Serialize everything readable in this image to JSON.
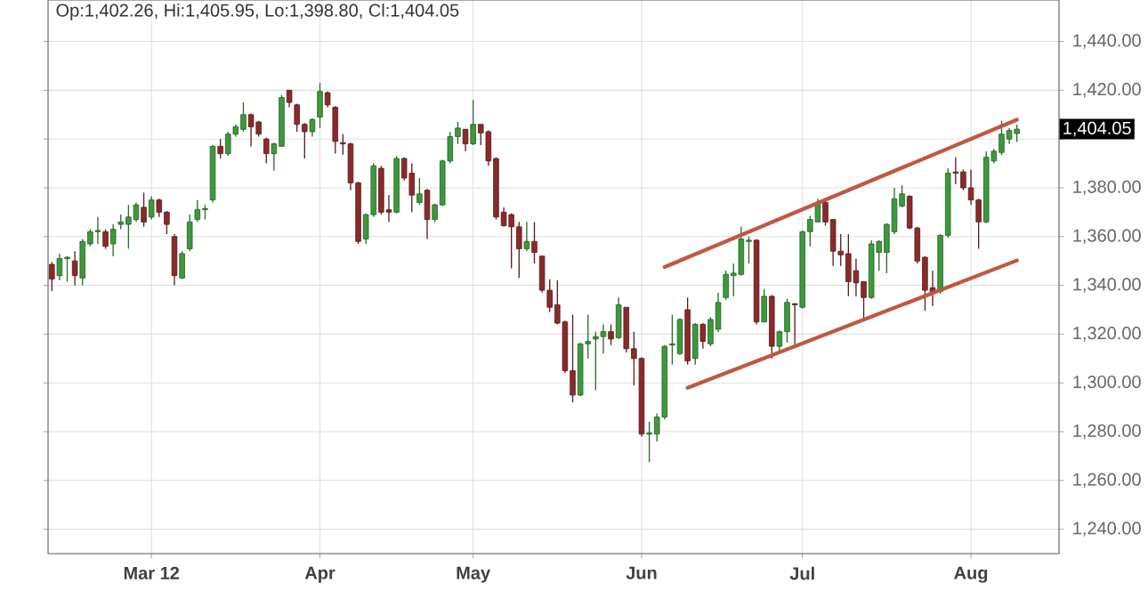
{
  "chart_data": {
    "type": "candlestick",
    "annotations": [
      "Op:1,402.26, Hi:1,405.95, Lo:1,398.80, Cl:1,404.05",
      "1,404.05"
    ],
    "categories": [
      null,
      null,
      null,
      null,
      null,
      null,
      null,
      null,
      null,
      null,
      null,
      null,
      null,
      "Mar 12",
      null,
      null,
      null,
      null,
      null,
      null,
      null,
      null,
      null,
      null,
      null,
      null,
      null,
      null,
      null,
      null,
      null,
      null,
      null,
      null,
      null,
      "Apr",
      null,
      null,
      null,
      null,
      null,
      null,
      null,
      null,
      null,
      null,
      null,
      null,
      null,
      null,
      null,
      null,
      null,
      null,
      null,
      "May",
      null,
      null,
      null,
      null,
      null,
      null,
      null,
      null,
      null,
      null,
      null,
      null,
      null,
      null,
      null,
      null,
      null,
      null,
      null,
      null,
      null,
      "Jun",
      null,
      null,
      null,
      null,
      null,
      null,
      null,
      null,
      null,
      null,
      null,
      null,
      null,
      null,
      null,
      null,
      null,
      null,
      null,
      null,
      "Jul",
      null,
      null,
      null,
      null,
      null,
      null,
      null,
      null,
      null,
      null,
      null,
      null,
      null,
      null,
      null,
      null,
      null,
      null,
      null,
      null,
      null,
      "Aug",
      null,
      null,
      null,
      null,
      null,
      null
    ],
    "ohlc": [
      [
        1348.6,
        1349.5,
        1337.7,
        1342.6
      ],
      [
        1344,
        1353,
        1342,
        1351
      ],
      [
        1351,
        1352,
        1341.5,
        1351.5
      ],
      [
        1350,
        1354,
        1340,
        1344
      ],
      [
        1343,
        1359,
        1340,
        1358
      ],
      [
        1357,
        1363,
        1356,
        1362
      ],
      [
        1362,
        1368,
        1357,
        1362.5
      ],
      [
        1362,
        1363,
        1355,
        1356
      ],
      [
        1357,
        1365,
        1352,
        1363
      ],
      [
        1365,
        1369,
        1363,
        1366
      ],
      [
        1365,
        1373,
        1355,
        1368
      ],
      [
        1367,
        1374,
        1366,
        1373
      ],
      [
        1372,
        1378,
        1364,
        1366
      ],
      [
        1368,
        1376.5,
        1367,
        1375
      ],
      [
        1375,
        1375.5,
        1368,
        1370
      ],
      [
        1370,
        1370.5,
        1361,
        1365
      ],
      [
        1360,
        1361,
        1340,
        1344
      ],
      [
        1343,
        1354,
        1342.6,
        1353
      ],
      [
        1355,
        1369,
        1354,
        1366
      ],
      [
        1367,
        1375,
        1366,
        1371
      ],
      [
        1371,
        1373,
        1367,
        1371.5
      ],
      [
        1375,
        1397.5,
        1374,
        1397
      ],
      [
        1397,
        1400,
        1392,
        1394
      ],
      [
        1394,
        1403,
        1393,
        1402
      ],
      [
        1402,
        1406,
        1401,
        1405
      ],
      [
        1404,
        1415,
        1403,
        1410
      ],
      [
        1410,
        1410.5,
        1397,
        1405
      ],
      [
        1407,
        1407.5,
        1401,
        1402
      ],
      [
        1400,
        1400.5,
        1390,
        1394
      ],
      [
        1394,
        1398.5,
        1387,
        1398
      ],
      [
        1397,
        1418,
        1397,
        1417
      ],
      [
        1420,
        1420,
        1413,
        1415
      ],
      [
        1414,
        1414.5,
        1403,
        1406
      ],
      [
        1406,
        1406.5,
        1392,
        1403
      ],
      [
        1403,
        1408.5,
        1401,
        1408
      ],
      [
        1409,
        1423,
        1404.5,
        1419.5
      ],
      [
        1419,
        1419.5,
        1413,
        1414
      ],
      [
        1413,
        1413.5,
        1394,
        1399
      ],
      [
        1398.5,
        1402,
        1393.6,
        1398
      ],
      [
        1398,
        1398.5,
        1379,
        1382
      ],
      [
        1382,
        1382.5,
        1357,
        1358
      ],
      [
        1359,
        1369.5,
        1357,
        1369
      ],
      [
        1369,
        1390,
        1368,
        1389
      ],
      [
        1388,
        1389,
        1369,
        1370
      ],
      [
        1371,
        1377,
        1366,
        1370
      ],
      [
        1370,
        1393,
        1369.5,
        1392
      ],
      [
        1392,
        1392.5,
        1383,
        1384
      ],
      [
        1386,
        1390,
        1370,
        1377
      ],
      [
        1374,
        1384,
        1373,
        1377.5
      ],
      [
        1379,
        1379.5,
        1359,
        1367
      ],
      [
        1367,
        1373.5,
        1366,
        1373
      ],
      [
        1373,
        1391.5,
        1372.5,
        1391
      ],
      [
        1391,
        1403,
        1390,
        1401
      ],
      [
        1401,
        1407,
        1398,
        1404.5
      ],
      [
        1404,
        1404,
        1395,
        1398
      ],
      [
        1398,
        1416,
        1397.5,
        1406
      ],
      [
        1406,
        1406,
        1397.5,
        1402.5
      ],
      [
        1403,
        1403.5,
        1389,
        1391
      ],
      [
        1392,
        1392.5,
        1367,
        1368
      ],
      [
        1370,
        1372,
        1364,
        1364.5
      ],
      [
        1369,
        1369.5,
        1347,
        1364
      ],
      [
        1364,
        1366,
        1343,
        1355
      ],
      [
        1355,
        1366,
        1354,
        1358
      ],
      [
        1358,
        1366,
        1349,
        1353.5
      ],
      [
        1352,
        1352,
        1337,
        1338
      ],
      [
        1338,
        1342.5,
        1329,
        1331
      ],
      [
        1332,
        1342,
        1324,
        1324.5
      ],
      [
        1325,
        1325.5,
        1304,
        1305
      ],
      [
        1305,
        1328,
        1292,
        1295
      ],
      [
        1295,
        1316.5,
        1294.5,
        1316
      ],
      [
        1316,
        1328,
        1310,
        1317
      ],
      [
        1318,
        1321,
        1297,
        1319
      ],
      [
        1319,
        1324,
        1312,
        1321
      ],
      [
        1321,
        1324,
        1315.5,
        1318
      ],
      [
        1318.5,
        1335,
        1318,
        1332
      ],
      [
        1331,
        1331,
        1312.5,
        1314
      ],
      [
        1314,
        1321,
        1299,
        1310
      ],
      [
        1310,
        1310.5,
        1278,
        1279
      ],
      [
        1279,
        1284,
        1267.5,
        1279.5
      ],
      [
        1279,
        1287.5,
        1276,
        1286
      ],
      [
        1286,
        1315.5,
        1285,
        1315
      ],
      [
        1315.5,
        1328,
        1307.5,
        1316
      ],
      [
        1312,
        1326.5,
        1311.5,
        1326
      ],
      [
        1330,
        1335,
        1307.5,
        1309
      ],
      [
        1310,
        1324.5,
        1307.5,
        1324
      ],
      [
        1324,
        1324.5,
        1314,
        1317
      ],
      [
        1316,
        1327,
        1315,
        1326
      ],
      [
        1322,
        1337,
        1321,
        1333
      ],
      [
        1335,
        1346,
        1334,
        1344.5
      ],
      [
        1344,
        1349,
        1335.5,
        1345
      ],
      [
        1344.5,
        1364,
        1344,
        1359
      ],
      [
        1358,
        1360,
        1349,
        1358.5
      ],
      [
        1358.5,
        1359,
        1324,
        1325
      ],
      [
        1325,
        1338.5,
        1325,
        1335.5
      ],
      [
        1335.5,
        1336,
        1310,
        1315
      ],
      [
        1315,
        1321.5,
        1312,
        1321
      ],
      [
        1321,
        1334.5,
        1316.5,
        1333
      ],
      [
        1332.5,
        1332.5,
        1315.5,
        1332
      ],
      [
        1331,
        1362.5,
        1330.5,
        1362
      ],
      [
        1362,
        1368.5,
        1356,
        1367
      ],
      [
        1366,
        1375.5,
        1366,
        1374
      ],
      [
        1374,
        1374.5,
        1364.5,
        1366
      ],
      [
        1367,
        1367,
        1348,
        1354
      ],
      [
        1354,
        1361,
        1348,
        1352.5
      ],
      [
        1353,
        1361,
        1335.5,
        1341.5
      ],
      [
        1346,
        1351,
        1335.5,
        1341
      ],
      [
        1341.5,
        1341.5,
        1326,
        1335
      ],
      [
        1335,
        1358.5,
        1334.5,
        1357
      ],
      [
        1353.5,
        1358.5,
        1346,
        1358
      ],
      [
        1353.5,
        1365.5,
        1345,
        1365
      ],
      [
        1362,
        1380,
        1361,
        1375.5
      ],
      [
        1372.5,
        1381,
        1372,
        1377.5
      ],
      [
        1376.5,
        1377,
        1363,
        1363.5
      ],
      [
        1363.5,
        1364,
        1349,
        1350
      ],
      [
        1351.5,
        1352,
        1329.5,
        1338
      ],
      [
        1339,
        1346,
        1331.5,
        1337
      ],
      [
        1337.5,
        1361,
        1336.5,
        1360.5
      ],
      [
        1360.5,
        1388,
        1359.5,
        1386
      ],
      [
        1386.5,
        1392.5,
        1381.5,
        1386
      ],
      [
        1386.5,
        1387.5,
        1379,
        1380
      ],
      [
        1380,
        1387.5,
        1373,
        1375
      ],
      [
        1375,
        1375.5,
        1355,
        1366
      ],
      [
        1366,
        1395,
        1365.5,
        1392.5
      ],
      [
        1391,
        1396,
        1390,
        1395
      ],
      [
        1394.5,
        1407.5,
        1393.5,
        1402
      ],
      [
        1400,
        1404.5,
        1398,
        1403.5
      ],
      [
        1402.26,
        1405.95,
        1398.8,
        1404.05
      ]
    ],
    "series": [
      {
        "type": "line",
        "values": [
          null,
          null,
          null,
          null,
          null,
          null,
          null,
          null,
          null,
          null,
          null,
          null,
          null,
          null,
          null,
          null,
          null,
          null,
          null,
          null,
          null,
          null,
          null,
          null,
          null,
          null,
          null,
          null,
          null,
          null,
          null,
          null,
          null,
          null,
          null,
          null,
          null,
          null,
          null,
          null,
          null,
          null,
          null,
          null,
          null,
          null,
          null,
          null,
          null,
          null,
          null,
          null,
          null,
          null,
          null,
          null,
          null,
          null,
          null,
          null,
          null,
          null,
          null,
          null,
          null,
          null,
          null,
          null,
          null,
          null,
          null,
          null,
          null,
          null,
          null,
          null,
          null,
          null,
          null,
          null,
          1347.5,
          null,
          null,
          null,
          null,
          null,
          null,
          null,
          null,
          null,
          null,
          null,
          null,
          null,
          null,
          null,
          null,
          null,
          null,
          null,
          null,
          null,
          null,
          null,
          null,
          null,
          null,
          null,
          null,
          null,
          null,
          null,
          null,
          null,
          null,
          null,
          null,
          null,
          null,
          null,
          null,
          null,
          null,
          null,
          null,
          null,
          1407.9
        ],
        "color": "#c0583f"
      },
      {
        "type": "line",
        "values": [
          null,
          null,
          null,
          null,
          null,
          null,
          null,
          null,
          null,
          null,
          null,
          null,
          null,
          null,
          null,
          null,
          null,
          null,
          null,
          null,
          null,
          null,
          null,
          null,
          null,
          null,
          null,
          null,
          null,
          null,
          null,
          null,
          null,
          null,
          null,
          null,
          null,
          null,
          null,
          null,
          null,
          null,
          null,
          null,
          null,
          null,
          null,
          null,
          null,
          null,
          null,
          null,
          null,
          null,
          null,
          null,
          null,
          null,
          null,
          null,
          null,
          null,
          null,
          null,
          null,
          null,
          null,
          null,
          null,
          null,
          null,
          null,
          null,
          null,
          null,
          null,
          null,
          null,
          null,
          null,
          null,
          null,
          null,
          1298,
          null,
          null,
          null,
          null,
          null,
          null,
          null,
          null,
          null,
          null,
          null,
          null,
          null,
          null,
          null,
          null,
          null,
          null,
          null,
          null,
          null,
          null,
          null,
          null,
          null,
          null,
          null,
          null,
          null,
          null,
          null,
          null,
          null,
          null,
          null,
          null,
          null,
          null,
          null,
          null,
          null,
          null,
          1350.2
        ],
        "color": "#c0583f"
      }
    ],
    "ylim": [
      1230,
      1457
    ],
    "yticks": [
      {
        "value": 1240,
        "label": "1,240.00"
      },
      {
        "value": 1260,
        "label": "1,260.00"
      },
      {
        "value": 1280,
        "label": "1,280.00"
      },
      {
        "value": 1300,
        "label": "1,300.00"
      },
      {
        "value": 1320,
        "label": "1,320.00"
      },
      {
        "value": 1340,
        "label": "1,340.00"
      },
      {
        "value": 1360,
        "label": "1,360.00"
      },
      {
        "value": 1380,
        "label": "1,380.00"
      },
      {
        "value": 1400,
        "label": null
      },
      {
        "value": 1420,
        "label": "1,420.00"
      },
      {
        "value": 1440,
        "label": "1,440.00"
      }
    ],
    "grid": true
  }
}
